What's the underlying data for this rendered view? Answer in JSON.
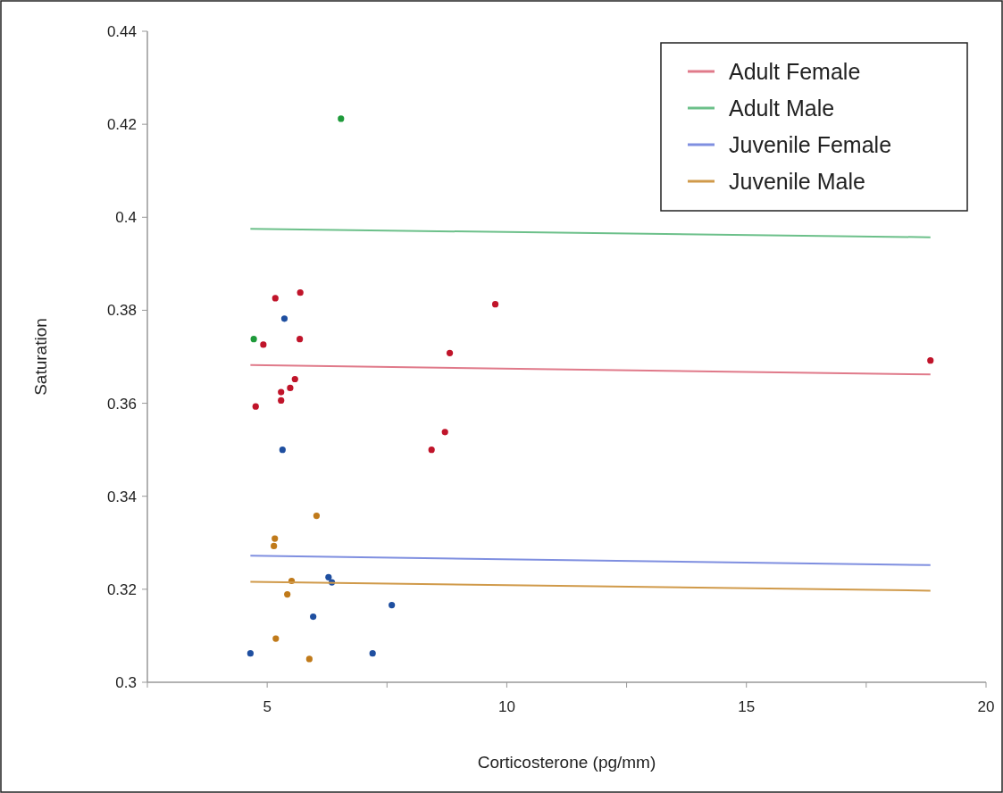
{
  "chart_data": {
    "type": "scatter",
    "xlabel": "Corticosterone (pg/mm)",
    "ylabel": "Saturation",
    "xlim": [
      2.5,
      20
    ],
    "xticks": [
      {
        "value": 2.5,
        "label": null
      },
      5,
      {
        "value": 7.5,
        "label": null
      },
      10,
      {
        "value": 12.5,
        "label": null
      },
      15,
      {
        "value": 17.5,
        "label": null
      },
      20
    ],
    "ylim": [
      0.3,
      0.44
    ],
    "yticks": [
      {
        "value": 0.3,
        "label": "0.3"
      },
      0.32,
      0.34,
      0.36,
      0.38,
      {
        "value": 0.4,
        "label": "0.4"
      },
      0.42,
      0.44
    ],
    "grid": false,
    "legend": "top right",
    "marker": "circle",
    "series": [
      {
        "color": "#c0142a",
        "x": [
          5.17,
          5.69,
          5.68,
          4.92,
          5.58,
          5.48,
          5.29,
          5.29,
          4.76,
          9.76,
          8.81,
          8.71,
          8.43,
          18.84
        ],
        "values": [
          0.3826,
          0.3838,
          0.3738,
          0.3726,
          0.3652,
          0.3633,
          0.3624,
          0.3606,
          0.3593,
          0.3813,
          0.3708,
          0.3538,
          0.35,
          0.3692
        ]
      },
      {
        "color": "#1e9a3a",
        "x": [
          4.72,
          6.54
        ],
        "values": [
          0.3738,
          0.4212
        ]
      },
      {
        "color": "#1f4fa0",
        "x": [
          5.36,
          5.32,
          4.65,
          5.96,
          6.28,
          6.35,
          7.6,
          7.2
        ],
        "values": [
          0.3782,
          0.35,
          0.3062,
          0.3141,
          0.3226,
          0.3215,
          0.3166,
          0.3062
        ]
      },
      {
        "color": "#c07a1a",
        "x": [
          6.03,
          5.16,
          5.14,
          5.51,
          5.42,
          5.18,
          5.88
        ],
        "values": [
          0.3358,
          0.3309,
          0.3293,
          0.3218,
          0.3189,
          0.3094,
          0.305
        ]
      },
      {
        "type": "line",
        "marker": "none",
        "name": "Adult Female",
        "color": "#e07a8a",
        "x": [
          4.65,
          18.84
        ],
        "values": [
          0.3682,
          0.3662
        ]
      },
      {
        "type": "line",
        "marker": "none",
        "name": "Adult Male",
        "color": "#6cc08a",
        "x": [
          4.65,
          18.84
        ],
        "values": [
          0.3975,
          0.3957
        ]
      },
      {
        "type": "line",
        "marker": "none",
        "name": "Juvenile Female",
        "color": "#7f8fe0",
        "x": [
          4.65,
          18.84
        ],
        "values": [
          0.3272,
          0.3252
        ]
      },
      {
        "type": "line",
        "marker": "none",
        "name": "Juvenile Male",
        "color": "#d09a4a",
        "x": [
          4.65,
          18.84
        ],
        "values": [
          0.3216,
          0.3197
        ]
      }
    ]
  }
}
